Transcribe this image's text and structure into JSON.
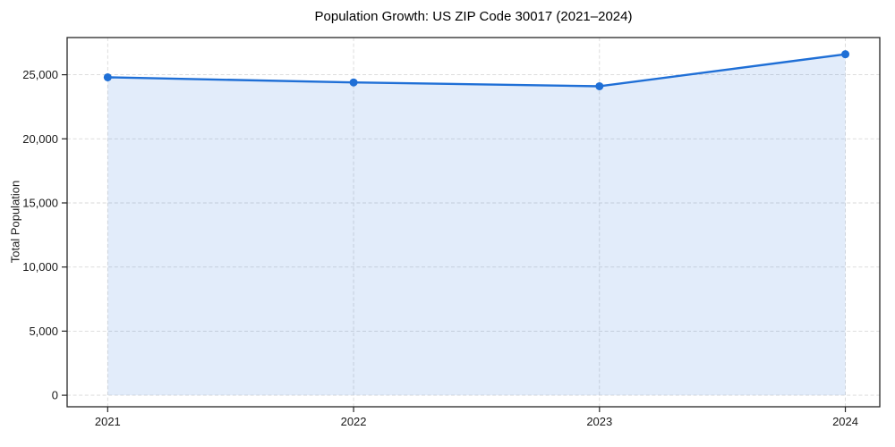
{
  "title": "Population Growth: US ZIP Code 30017 (2021–2024)",
  "chart_data": {
    "type": "area",
    "title": "Population Growth: US ZIP Code 30017 (2021–2024)",
    "xlabel": "",
    "ylabel": "Total Population",
    "x": [
      2021,
      2022,
      2023,
      2024
    ],
    "xtick_labels": [
      "2021",
      "2022",
      "2023",
      "2024"
    ],
    "series": [
      {
        "name": "Total Population",
        "values": [
          24800,
          24400,
          24100,
          26600
        ]
      }
    ],
    "fill_baseline": 0,
    "yticks": [
      0,
      5000,
      10000,
      15000,
      20000,
      25000
    ],
    "ytick_labels": [
      "0",
      "5,000",
      "10,000",
      "15,000",
      "20,000",
      "25,000"
    ],
    "xlim": [
      2020.835,
      2024.14
    ],
    "ylim": [
      -900,
      27900
    ],
    "grid": true,
    "legend": "none",
    "colors": {
      "line": "#1f6fd6",
      "fill": "rgba(31,111,214,0.13)",
      "grid": "#d9d9d9",
      "spine": "#262626",
      "text": "#1a1a1a",
      "background": "#ffffff"
    }
  }
}
